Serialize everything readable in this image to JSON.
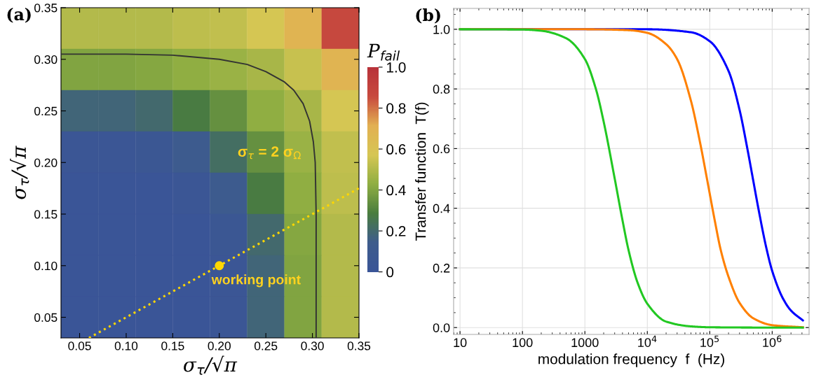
{
  "chart_data": [
    {
      "type": "heatmap",
      "title": "(a)",
      "xlabel": "σ$_{τ}$/√π",
      "ylabel": "σ$_{τ}$/√π",
      "clabel": "P$_{fail}$",
      "x": [
        0.05,
        0.09,
        0.13,
        0.17,
        0.21,
        0.25,
        0.29,
        0.33
      ],
      "y": [
        0.33,
        0.29,
        0.25,
        0.21,
        0.17,
        0.13,
        0.09,
        0.05
      ],
      "cells": [
        [
          0.5,
          0.5,
          0.5,
          0.52,
          0.53,
          0.57,
          0.69,
          0.87
        ],
        [
          0.4,
          0.4,
          0.41,
          0.43,
          0.45,
          0.48,
          0.54,
          0.69
        ],
        [
          0.18,
          0.18,
          0.2,
          0.28,
          0.34,
          0.43,
          0.48,
          0.57
        ],
        [
          0.03,
          0.03,
          0.05,
          0.12,
          0.22,
          0.34,
          0.45,
          0.53
        ],
        [
          0,
          0,
          0,
          0.02,
          0.12,
          0.28,
          0.43,
          0.52
        ],
        [
          0,
          0,
          0,
          0,
          0.05,
          0.2,
          0.41,
          0.5
        ],
        [
          0,
          0,
          0,
          0,
          0.03,
          0.18,
          0.4,
          0.5
        ],
        [
          0,
          0,
          0,
          0,
          0.03,
          0.18,
          0.4,
          0.5
        ]
      ],
      "colors": [
        "#3a5597",
        "#3e5c8c",
        "#4a7d3e",
        "#8fae42",
        "#d6c653",
        "#e2b052",
        "#c84a3e",
        "#b8323a"
      ],
      "clim": [
        0,
        1
      ],
      "cticks": [
        {
          "value": 0,
          "label": "0"
        },
        0.2,
        0.4,
        0.6,
        0.8,
        {
          "value": 1,
          "label": "1.0"
        }
      ],
      "xlim": [
        0.03,
        0.35
      ],
      "ylim": [
        0.03,
        0.35
      ],
      "xticks": [
        0.05,
        {
          "value": 0.1,
          "label": "0.10"
        },
        0.15,
        {
          "value": 0.2,
          "label": "0.20"
        },
        0.25,
        {
          "value": 0.3,
          "label": "0.30"
        },
        0.35
      ],
      "yticks": [
        0.05,
        {
          "value": 0.1,
          "label": "0.10"
        },
        0.15,
        {
          "value": 0.2,
          "label": "0.20"
        },
        0.25,
        {
          "value": 0.3,
          "label": "0.30"
        },
        0.35
      ],
      "series": [
        {
          "type": "line",
          "name": "σ$_{τ}$ = 2 σ$_{Ω}$",
          "color": "#333333",
          "x": [
            0.03,
            0.1,
            0.15,
            0.2,
            0.23,
            0.25,
            0.27,
            0.28,
            0.29,
            0.297,
            0.301,
            0.303,
            0.304,
            0.304
          ],
          "values": [
            0.305,
            0.305,
            0.304,
            0.3,
            0.295,
            0.288,
            0.278,
            0.27,
            0.257,
            0.24,
            0.22,
            0.2,
            0.15,
            0.03
          ]
        },
        {
          "type": "line",
          "color": "#ffd700",
          "line_style": "dotted",
          "x": [
            0.06,
            0.35
          ],
          "values": [
            0.03,
            0.175
          ]
        },
        {
          "type": "scatter",
          "color": "#ffd700",
          "marker": "circle",
          "x": [
            0.2
          ],
          "values": [
            0.1
          ]
        }
      ],
      "annotations": [
        {
          "text": "working point",
          "x": 0.2,
          "y": 0.1
        }
      ]
    },
    {
      "type": "line",
      "title": "(b)",
      "xlabel": "modulation frequency  f  (Hz)",
      "ylabel": "Transfer function  T(f)",
      "log": "x",
      "grid": true,
      "xlim": [
        7.9,
        3900000
      ],
      "ylim": [
        -0.023,
        1.07
      ],
      "xticks": [
        10,
        100,
        1000,
        {
          "value": 10000,
          "label": "10$^{4}$"
        },
        {
          "value": 100000,
          "label": "10$^{5}$"
        },
        {
          "value": 1000000,
          "label": "10$^{6}$"
        }
      ],
      "yticks": [
        {
          "value": 0,
          "label": "0.0"
        },
        0.2,
        0.4,
        0.6,
        0.8,
        {
          "value": 1,
          "label": "1.0"
        }
      ],
      "series": [
        {
          "color": "#0000ff",
          "x": [
            10,
            10000,
            50000,
            100000,
            200000,
            300000,
            400000,
            500000,
            600000,
            800000,
            1000000,
            1500000,
            2000000,
            3100000
          ],
          "values": [
            1,
            1,
            0.99,
            0.96,
            0.86,
            0.73,
            0.6,
            0.49,
            0.4,
            0.27,
            0.19,
            0.096,
            0.057,
            0.024
          ]
        },
        {
          "color": "#ff8000",
          "x": [
            10,
            1000,
            5000,
            10000,
            20000,
            30000,
            50000,
            70000,
            90000,
            120000,
            150000,
            200000,
            300000,
            500000,
            1000000,
            3100000
          ],
          "values": [
            1,
            1,
            0.997,
            0.988,
            0.95,
            0.9,
            0.76,
            0.62,
            0.5,
            0.36,
            0.26,
            0.17,
            0.083,
            0.031,
            0.008,
            0.001
          ]
        },
        {
          "color": "#22c822",
          "x": [
            10,
            100,
            200,
            500,
            1000,
            1500,
            2000,
            3000,
            4000,
            5000,
            7000,
            10000,
            20000,
            50000,
            100000,
            1000000,
            3100000
          ],
          "values": [
            1,
            0.999,
            0.995,
            0.97,
            0.9,
            0.8,
            0.69,
            0.5,
            0.36,
            0.26,
            0.15,
            0.08,
            0.02,
            0.004,
            0.001,
            0,
            0
          ]
        }
      ]
    }
  ]
}
